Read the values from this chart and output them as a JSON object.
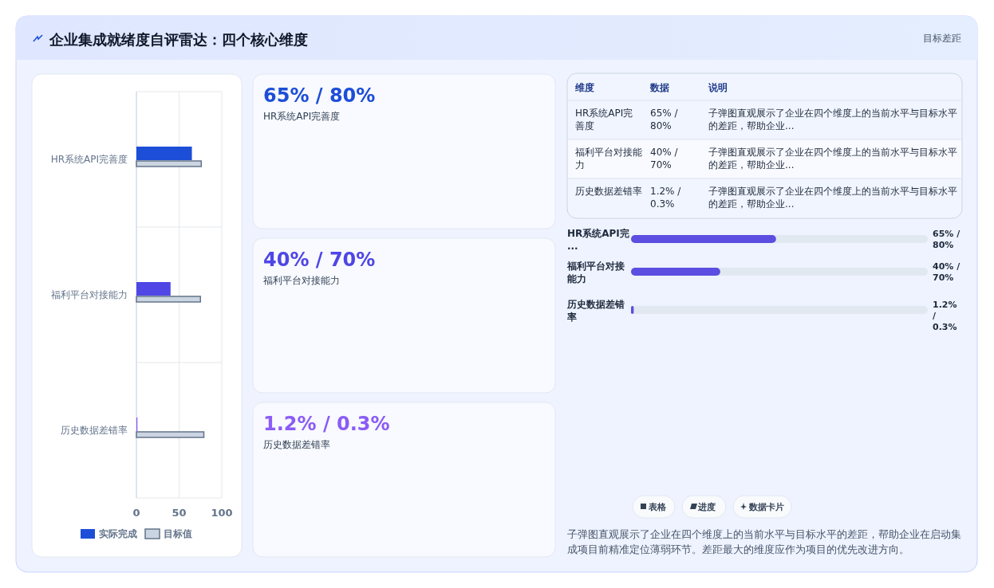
{
  "chart_data": [
    {
      "type": "other",
      "title": "企业集成就绪度自评雷达：四个核心维度",
      "subtitle": "目标差距"
    },
    {
      "type": "bar",
      "orientation": "horizontal",
      "categories": [
        "HR系统API完善度",
        "福利平台对接能力",
        "历史数据差错率"
      ],
      "series": [
        {
          "name": "实际完成",
          "color": "#1d4ed8",
          "colors": [
            "#1d4ed8",
            "#4f46e5",
            "#8b5cf6"
          ],
          "values": [
            65,
            40,
            1.2
          ]
        },
        {
          "name": "目标值",
          "color": "#cbd5e1",
          "values": [
            76,
            75,
            79
          ]
        }
      ],
      "xlim": [
        0,
        100
      ],
      "xticks": [
        0,
        50,
        100
      ],
      "grid": true,
      "legend": "bottom"
    },
    {
      "type": "other",
      "annotations": [
        "65% / 80%",
        "HR系统API完善度",
        "40% / 70%",
        "福利平台对接能力",
        "1.2% / 0.3%",
        "历史数据差错率"
      ]
    },
    {
      "type": "other",
      "annotations": [
        "维度",
        "数据",
        "说明",
        "HR系统API完善度",
        "65% / 80%",
        "子弹图直观展示了企业在四个维度上的当前水平与目标水平的差距，帮助企业...",
        "福利平台对接能力",
        "40% / 70%",
        "子弹图直观展示了企业在四个维度上的当前水平与目标水平的差距，帮助企业...",
        "历史数据差错率",
        "1.2% / 0.3%",
        "子弹图直观展示了企业在四个维度上的当前水平与目标水平的差距，帮助企业..."
      ]
    },
    {
      "type": "bar",
      "orientation": "horizontal",
      "categories": [
        "HR系统API完...",
        "福利平台对接能力",
        "历史数据差错率"
      ],
      "values": [
        65,
        40,
        1.2
      ],
      "xlim": [
        0,
        133
      ],
      "color": "#5b4ee0",
      "value_labels": [
        "65% / 80%",
        "40% / 70%",
        "1.2% / 0.3%"
      ]
    },
    {
      "type": "other",
      "annotations": [
        "表格",
        "进度",
        "数据卡片",
        "子弹图直观展示了企业在四个维度上的当前水平与目标水平的差距，帮助企业在启动集成项目前精准定位薄弱环节。差距最大的维度应作为项目的优先改进方向。"
      ]
    }
  ]
}
